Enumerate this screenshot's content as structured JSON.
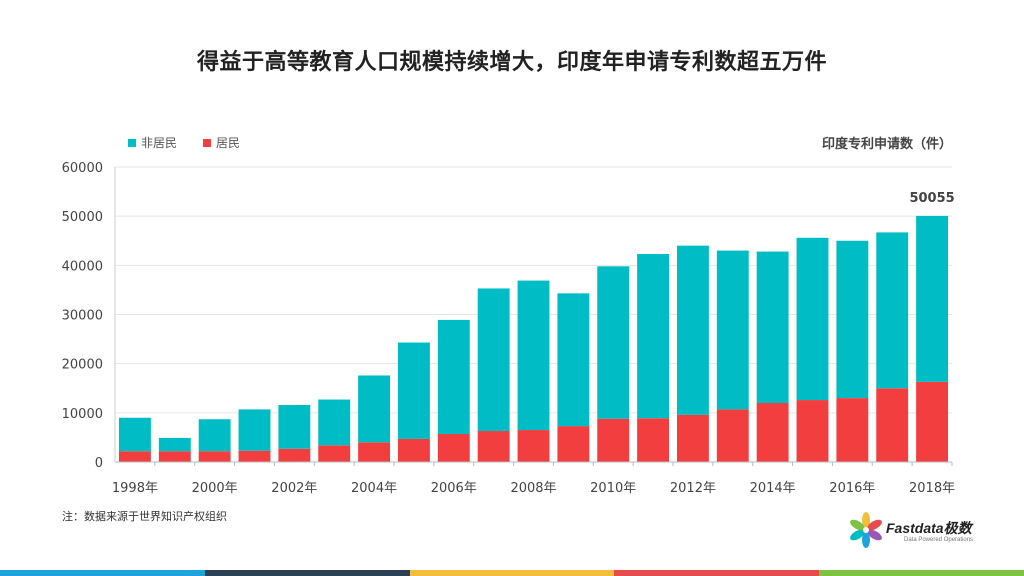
{
  "title": "得益于高等教育人口规模持续增大，印度年申请专利数超五万件",
  "unit_label": "印度专利申请数（件）",
  "legend": [
    {
      "name": "非居民",
      "color": "#00BCC4"
    },
    {
      "name": "居民",
      "color": "#F23E3E"
    }
  ],
  "note": "注：数据来源于世界知识产权组织",
  "logo": {
    "name": "Fastdata极数",
    "tagline": "Data Powered Operations"
  },
  "bottom_bar_colors": [
    "#1FA3DB",
    "#2D3F55",
    "#F2BE3C",
    "#E84B4B",
    "#7DC242"
  ],
  "chart_data": {
    "type": "bar",
    "stacked": true,
    "categories": [
      "1998年",
      "1999年",
      "2000年",
      "2001年",
      "2002年",
      "2003年",
      "2004年",
      "2005年",
      "2006年",
      "2007年",
      "2008年",
      "2009年",
      "2010年",
      "2011年",
      "2012年",
      "2013年",
      "2014年",
      "2015年",
      "2016年",
      "2017年",
      "2018年"
    ],
    "x_tick_labels": [
      "1998年",
      "",
      "2000年",
      "",
      "2002年",
      "",
      "2004年",
      "",
      "2006年",
      "",
      "2008年",
      "",
      "2010年",
      "",
      "2012年",
      "",
      "2014年",
      "",
      "2016年",
      "",
      "2018年"
    ],
    "series": [
      {
        "name": "居民",
        "color": "#F23E3E",
        "values": [
          2200,
          2200,
          2200,
          2300,
          2700,
          3400,
          4000,
          4700,
          5700,
          6300,
          6500,
          7300,
          8800,
          8900,
          9600,
          10700,
          12000,
          12600,
          13000,
          15000,
          16300
        ]
      },
      {
        "name": "非居民",
        "color": "#00BCC4",
        "values": [
          6800,
          2700,
          6500,
          8400,
          8900,
          9300,
          13600,
          19600,
          23200,
          29000,
          30400,
          27000,
          31000,
          33400,
          34400,
          32300,
          30800,
          33000,
          32000,
          31700,
          33755
        ]
      }
    ],
    "totals": [
      9000,
      4900,
      8700,
      10700,
      11600,
      12700,
      17600,
      24300,
      28900,
      35300,
      36900,
      34300,
      39800,
      42300,
      44000,
      43000,
      42800,
      45600,
      45000,
      46700,
      50055
    ],
    "data_labels": [
      {
        "category": "2018年",
        "value": "50055"
      }
    ],
    "ylim": [
      0,
      60000
    ],
    "yticks": [
      0,
      10000,
      20000,
      30000,
      40000,
      50000,
      60000
    ],
    "grid": true,
    "legend_position": "top-left"
  }
}
